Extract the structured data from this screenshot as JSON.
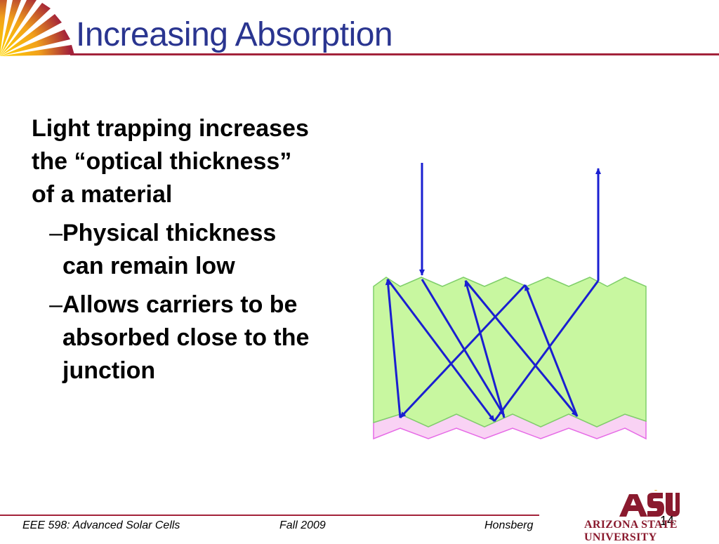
{
  "slide": {
    "title": "Increasing Absorption",
    "main_point": "Light trapping increases the “optical thickness” of a material",
    "sub_points": [
      {
        "dash": "– ",
        "text": "Physical thickness can remain low"
      },
      {
        "dash": "–",
        "text": "Allows carriers to be absorbed close to the junction"
      }
    ]
  },
  "diagram": {
    "colors": {
      "material_fill": "#c8f7a0",
      "material_edge": "#7fcf6a",
      "junction_fill": "#f9d2f4",
      "junction_edge": "#e66ae6",
      "ray": "#1a1fd1"
    }
  },
  "logo": {
    "mark": "ASU",
    "colors": {
      "sun": "#e8a317",
      "maroon": "#8a1a2e"
    }
  },
  "footer": {
    "course": "EEE 598: Advanced Solar Cells",
    "term": "Fall 2009",
    "author": "Honsberg",
    "page": "14",
    "university": "ARIZONA STATE UNIVERSITY"
  }
}
